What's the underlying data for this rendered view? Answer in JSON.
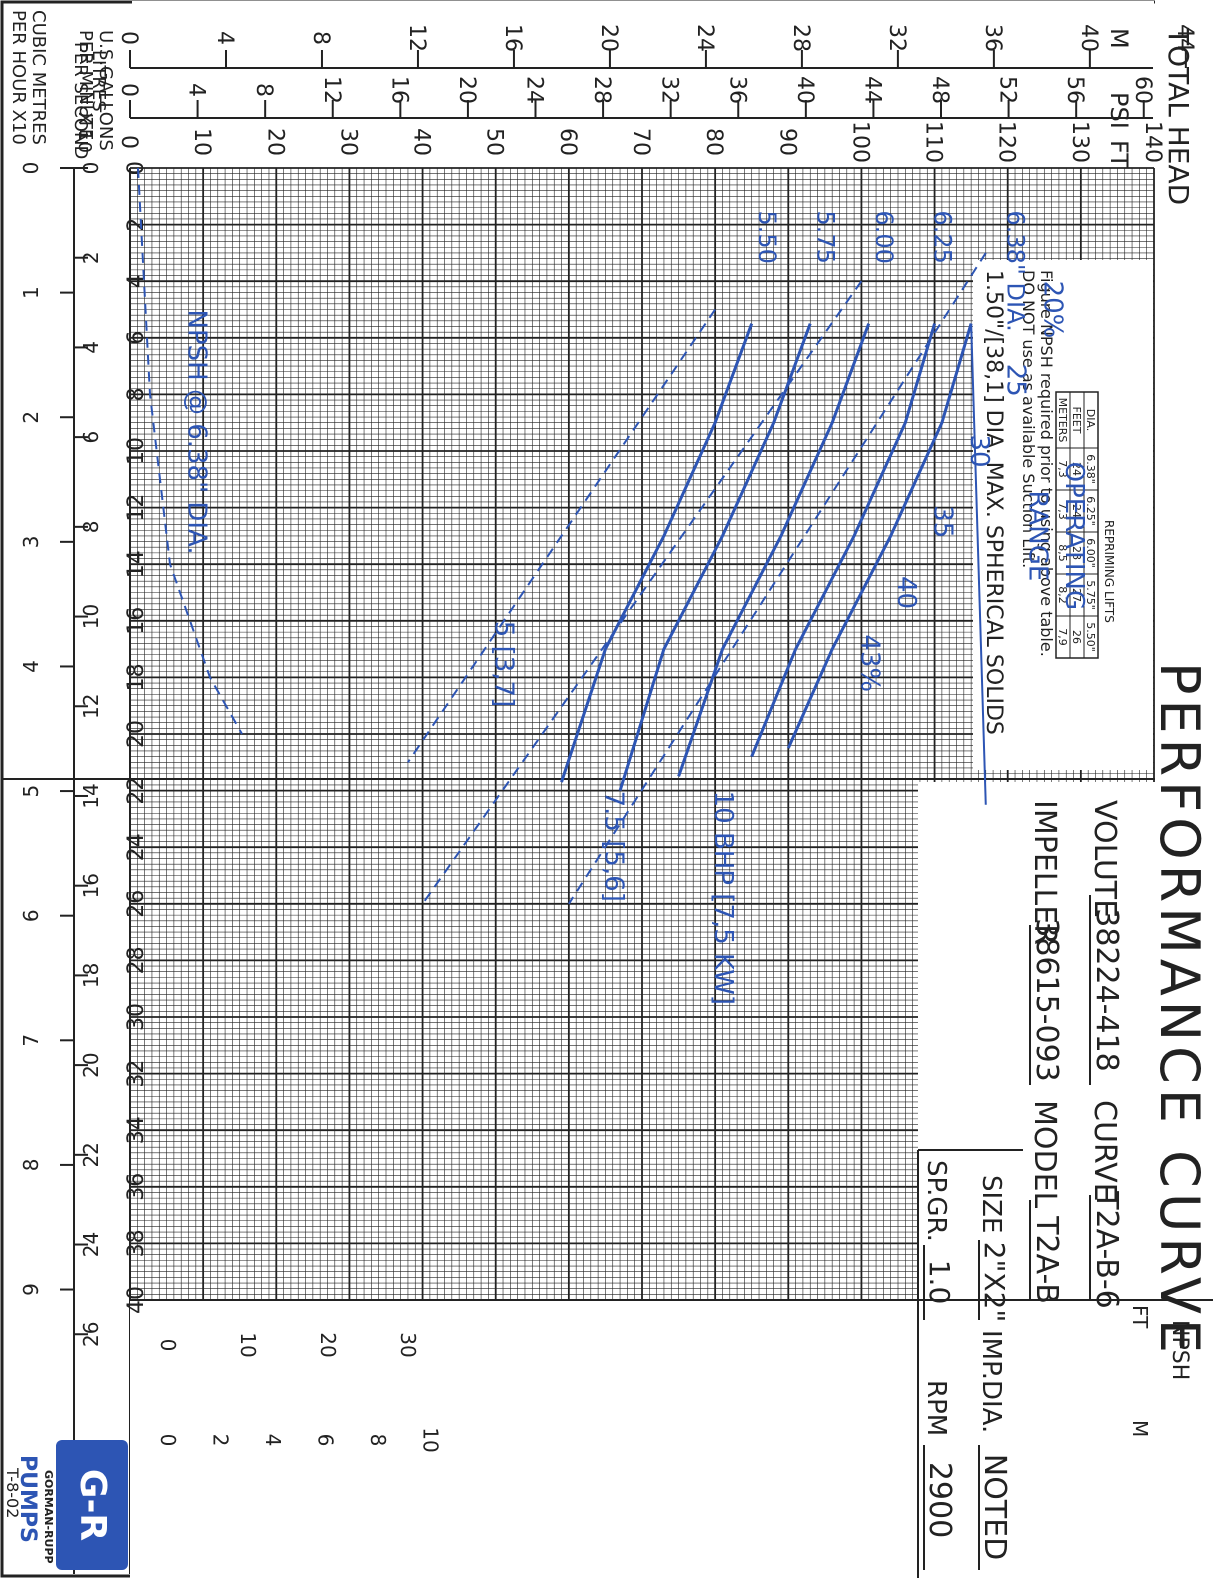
{
  "title": "PERFORMANCE CURVE",
  "info": {
    "volute_label": "VOLUTE",
    "volute_value": "38224-418",
    "curve_label": "CURVE",
    "curve_value": "T2A-B-6",
    "impeller_label": "IMPELLER",
    "impeller_value": "38615-093",
    "model_label": "MODEL",
    "model_value": "T2A-B",
    "size_label": "SIZE",
    "size_value": "2\"X2\"",
    "impdia_label": "IMP.DIA.",
    "impdia_value": "NOTED",
    "spgr_label": "SP.GR.",
    "spgr_value": "1.0",
    "rpm_label": "RPM",
    "rpm_value": "2900"
  },
  "logo": {
    "brand": "G-R",
    "line1": "GORMAN-RUPP",
    "line2": "PUMPS",
    "doc_code": "T-8-02"
  },
  "notes": {
    "repriming_title": "REPRIMING LIFTS",
    "repriming_headers": [
      "DIA.",
      "6.38\"",
      "6.25\"",
      "6.00\"",
      "5.75\"",
      "5.50\""
    ],
    "repriming_rows": [
      [
        "FEET",
        "24",
        "24",
        "28",
        "27",
        "26"
      ],
      [
        "METERS",
        "7,3",
        "7,3",
        "8,5",
        "8,2",
        "7,9"
      ]
    ],
    "npsh_note_1": "Figure NPSH required prior to using above table.",
    "npsh_note_2": "DO NOT use as available Suction Lift.",
    "solids_note": "1.50\"/[38,1] DIA. MAX. SPHERICAL SOLIDS"
  },
  "axes": {
    "head_header": "TOTAL HEAD",
    "m_label": "M",
    "psi_label": "PSI",
    "ft_label": "FT",
    "m_ticks": [
      "0",
      "4",
      "8",
      "12",
      "16",
      "20",
      "24",
      "28",
      "32",
      "36",
      "40",
      "44"
    ],
    "psi_ticks": [
      "0",
      "4",
      "8",
      "12",
      "16",
      "20",
      "24",
      "28",
      "32",
      "36",
      "40",
      "44",
      "48",
      "52",
      "56",
      "60"
    ],
    "ft_ticks": [
      "0",
      "10",
      "20",
      "30",
      "40",
      "50",
      "60",
      "70",
      "80",
      "90",
      "100",
      "110",
      "120",
      "130",
      "140"
    ],
    "gpm_ticks": [
      "0",
      "2",
      "4",
      "6",
      "8",
      "10",
      "12",
      "14",
      "16",
      "18",
      "20",
      "22",
      "24",
      "26",
      "28",
      "30",
      "32",
      "34",
      "36",
      "38",
      "40"
    ],
    "gpm_label_1": "U.S.GALLONS",
    "gpm_label_2": "PER MINUTE",
    "gpm_label_x": "X 10",
    "lps_ticks": [
      "0",
      "2",
      "4",
      "6",
      "8",
      "10",
      "12",
      "14",
      "16",
      "18",
      "20",
      "22",
      "24",
      "26"
    ],
    "lps_label_1": "LITRES",
    "lps_label_2": "PER SECOND",
    "cmh_ticks": [
      "0",
      "1",
      "2",
      "3",
      "4",
      "5",
      "6",
      "7",
      "8",
      "9"
    ],
    "cmh_label_1": "CUBIC METRES",
    "cmh_label_2": "PER HOUR X10",
    "npsh_header": "NPSH",
    "npsh_ft_label": "FT",
    "npsh_m_label": "M",
    "npsh_ft_ticks": [
      "0",
      "10",
      "20",
      "30"
    ],
    "npsh_m_ticks": [
      "0",
      "2",
      "4",
      "6",
      "8",
      "10"
    ]
  },
  "labels": {
    "operating_range_1": "OPERATING",
    "operating_range_2": "RANGE",
    "npsh_curve": "NPSH @ 6.38\" DIA.",
    "bhp_10": "10 BHP [7,5 KW]",
    "bhp_75": "7.5 [5,6]",
    "bhp_5": "5 [3,7]",
    "dia_first": "6.38\" DIA.",
    "dia_others": [
      "6.25",
      "6.00",
      "5.75",
      "5.50"
    ],
    "eff": [
      "20%",
      "25",
      "30",
      "35",
      "40",
      "43%"
    ]
  },
  "chart_data": {
    "type": "line",
    "xlabel": "U.S.GALLONS PER MINUTE X 10",
    "ylabel": "TOTAL HEAD",
    "xlim": [
      0,
      40
    ],
    "ylim": [
      0,
      140
    ],
    "series": [
      {
        "name": "6.38\" DIA.",
        "x": [
          5.5,
          9,
          13,
          17,
          20.5
        ],
        "y": [
          115,
          111,
          104,
          96,
          90
        ]
      },
      {
        "name": "6.25",
        "x": [
          5.5,
          9,
          13,
          17,
          20.8
        ],
        "y": [
          110,
          106,
          99,
          91,
          85
        ]
      },
      {
        "name": "6.00",
        "x": [
          5.5,
          9,
          13,
          17,
          21.5
        ],
        "y": [
          101,
          96,
          89,
          81,
          75
        ]
      },
      {
        "name": "5.75",
        "x": [
          5.5,
          9,
          13,
          17,
          22
        ],
        "y": [
          93,
          88,
          81,
          73,
          67
        ]
      },
      {
        "name": "5.50",
        "x": [
          5.5,
          9,
          13,
          17,
          21.7
        ],
        "y": [
          85,
          80,
          73,
          65,
          59
        ]
      }
    ],
    "power_lines": [
      {
        "label": "10 BHP [7,5 KW]",
        "x": [
          3,
          26
        ],
        "y": [
          117,
          60
        ]
      },
      {
        "label": "7.5 [5,6]",
        "x": [
          4,
          26
        ],
        "y": [
          100,
          40
        ]
      },
      {
        "label": "5 [3,7]",
        "x": [
          5,
          21
        ],
        "y": [
          80,
          38
        ]
      }
    ],
    "efficiency_labels": [
      "20%",
      "25",
      "30",
      "35",
      "40",
      "43%"
    ],
    "npsh_curve": {
      "name": "NPSH @ 6.38\" DIA.",
      "x": [
        0,
        8,
        14,
        18,
        20
      ],
      "y_ft": [
        1,
        2.5,
        5,
        10,
        14
      ]
    },
    "operating_range_gpm_x10": [
      5.5,
      22.5
    ],
    "grid": true
  }
}
